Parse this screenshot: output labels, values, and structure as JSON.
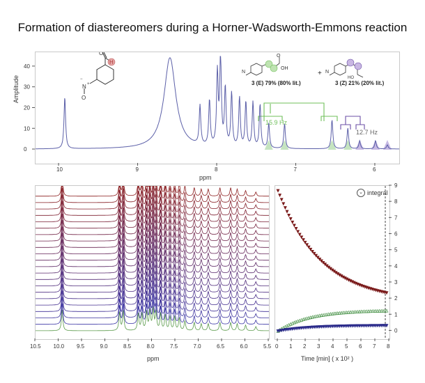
{
  "title": "Formation of diastereomers during a Horner-Wadsworth-Emmons reaction",
  "top_panel": {
    "ylabel": "Amplitude",
    "xlabel": "ppm",
    "coupling_e": "15.9 Hz",
    "coupling_z": "12.7 Hz",
    "plus": "+",
    "product_e": "3 (E) 79% (80% lit.)",
    "product_z": "3 (Z) 21% (20% lit.)",
    "aldehyde_h": "H",
    "aldehyde_o": "O",
    "acid_oh": "OH",
    "acid_o": "O",
    "nitro_n": "N",
    "nitro_o": "O",
    "nitro_plus": "+",
    "nitro_minus": "−",
    "z_ho": "HO"
  },
  "stack_panel": {
    "xlabel": "ppm"
  },
  "kinetics_panel": {
    "xlabel": "Time [min]  ( x 10² )",
    "button": "integral"
  },
  "colors": {
    "spectrum": "#5b5fa8",
    "e_isomer": "#6fbf5a",
    "z_isomer": "#6b4fa6",
    "start": "#7a1a1a",
    "end": "#1e2a8a"
  },
  "chart_data": [
    {
      "type": "line",
      "title": "",
      "xlabel": "ppm",
      "ylabel": "Amplitude",
      "xlim": [
        10.3,
        5.7
      ],
      "ylim": [
        -2,
        45
      ],
      "x_ticks": [
        10,
        9,
        8,
        7,
        6
      ],
      "y_ticks": [
        0,
        10,
        20,
        30,
        40
      ],
      "peaks": [
        {
          "ppm": 9.93,
          "height": 25
        },
        {
          "ppm": 8.6,
          "height": 44
        },
        {
          "ppm": 8.22,
          "height": 19
        },
        {
          "ppm": 8.1,
          "height": 22
        },
        {
          "ppm": 8.0,
          "height": 35
        },
        {
          "ppm": 7.96,
          "height": 44
        },
        {
          "ppm": 7.9,
          "height": 28
        },
        {
          "ppm": 7.82,
          "height": 26
        },
        {
          "ppm": 7.72,
          "height": 24
        },
        {
          "ppm": 7.64,
          "height": 22
        },
        {
          "ppm": 7.55,
          "height": 22
        },
        {
          "ppm": 7.46,
          "height": 21
        },
        {
          "ppm": 7.35,
          "height": 12
        },
        {
          "ppm": 7.15,
          "height": 12
        },
        {
          "ppm": 6.55,
          "height": 14
        },
        {
          "ppm": 6.35,
          "height": 10
        },
        {
          "ppm": 6.2,
          "height": 4
        },
        {
          "ppm": 6.0,
          "height": 4
        },
        {
          "ppm": 5.85,
          "height": 2
        }
      ]
    },
    {
      "type": "line",
      "title": "",
      "xlabel": "ppm",
      "xlim": [
        10.5,
        5.5
      ],
      "x_ticks": [
        10.5,
        10.0,
        9.5,
        9.0,
        8.5,
        8.0,
        7.5,
        7.0,
        6.5,
        6.0,
        5.5
      ],
      "n_traces": 22,
      "highlight_bands_ppm": [
        [
          9.88,
          9.98
        ],
        [
          6.5,
          6.6
        ],
        [
          6.12,
          6.22
        ]
      ]
    },
    {
      "type": "scatter",
      "title": "",
      "xlabel": "Time [min]  ( x 10² )",
      "xlim": [
        -0.2,
        8
      ],
      "ylim": [
        -0.5,
        9
      ],
      "x_ticks": [
        0,
        1,
        2,
        3,
        4,
        5,
        6,
        7,
        8
      ],
      "y_ticks": [
        0,
        1,
        2,
        3,
        4,
        5,
        6,
        7,
        8,
        9
      ],
      "series": [
        {
          "type": "decay",
          "start": 8.7,
          "end": 1.8,
          "rate": 0.32
        },
        {
          "type": "growth",
          "start": 0.0,
          "end": 1.3,
          "rate": 0.45
        },
        {
          "type": "growth",
          "start": 0.0,
          "end": 0.35,
          "rate": 0.45
        }
      ]
    }
  ]
}
